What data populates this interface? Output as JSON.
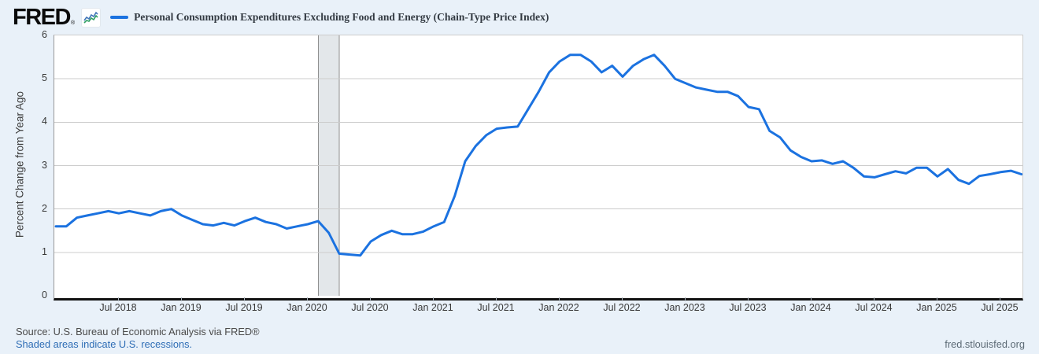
{
  "header": {
    "logo_text": "FRED",
    "registered_mark": "®",
    "legend_color": "#1b72e0",
    "title": "Personal Consumption Expenditures Excluding Food and Energy (Chain-Type Price Index)"
  },
  "chart_data": {
    "type": "line",
    "title": "Personal Consumption Expenditures Excluding Food and Energy (Chain-Type Price Index)",
    "xlabel": "",
    "ylabel": "Percent Change from Year Ago",
    "ylim": [
      0,
      6
    ],
    "yticks": [
      0,
      1,
      2,
      3,
      4,
      5,
      6
    ],
    "grid": true,
    "legend_position": "top-left",
    "line_color": "#1b72e0",
    "gridline_color": "#cccccc",
    "x_start_month": "2018-01",
    "x_end_month": "2025-09",
    "xtick_labels": [
      "Jul 2018",
      "Jan 2019",
      "Jul 2019",
      "Jan 2020",
      "Jul 2020",
      "Jan 2021",
      "Jul 2021",
      "Jan 2022",
      "Jul 2022",
      "Jan 2023",
      "Jul 2023",
      "Jan 2024",
      "Jul 2024",
      "Jan 2025",
      "Jul 2025"
    ],
    "recession_band": {
      "start_month": "2020-02",
      "end_month": "2020-04",
      "fill": "#e3e7ea",
      "border": "#8f8f8f"
    },
    "series": [
      {
        "name": "Personal Consumption Expenditures Excluding Food and Energy (Chain-Type Price Index)",
        "frequency": "monthly",
        "values": [
          1.6,
          1.6,
          1.8,
          1.85,
          1.9,
          1.95,
          1.9,
          1.95,
          1.9,
          1.85,
          1.95,
          2.0,
          1.85,
          1.75,
          1.65,
          1.62,
          1.68,
          1.62,
          1.72,
          1.8,
          1.7,
          1.65,
          1.55,
          1.6,
          1.65,
          1.72,
          1.45,
          0.97,
          0.95,
          0.93,
          1.25,
          1.4,
          1.5,
          1.42,
          1.42,
          1.48,
          1.6,
          1.7,
          2.3,
          3.1,
          3.45,
          3.7,
          3.85,
          3.88,
          3.9,
          4.3,
          4.7,
          5.15,
          5.4,
          5.55,
          5.55,
          5.4,
          5.15,
          5.3,
          5.05,
          5.3,
          5.45,
          5.55,
          5.3,
          5.0,
          4.9,
          4.8,
          4.75,
          4.7,
          4.7,
          4.6,
          4.35,
          4.3,
          3.8,
          3.65,
          3.35,
          3.2,
          3.1,
          3.12,
          3.04,
          3.1,
          2.95,
          2.75,
          2.73,
          2.8,
          2.87,
          2.82,
          2.95,
          2.95,
          2.75,
          2.92,
          2.67,
          2.58,
          2.76,
          2.8,
          2.85,
          2.88,
          2.8
        ]
      }
    ]
  },
  "footer": {
    "source_line": "Source: U.S. Bureau of Economic Analysis via FRED®",
    "shaded_note": "Shaded areas indicate U.S. recessions.",
    "site_link": "fred.stlouisfed.org"
  }
}
